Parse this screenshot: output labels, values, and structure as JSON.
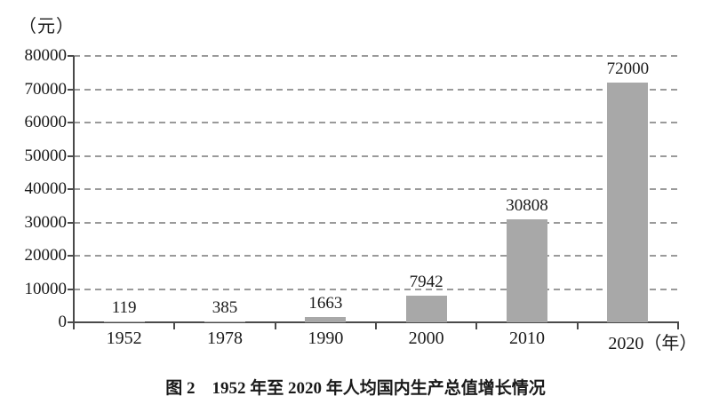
{
  "caption": "图 2　1952 年至 2020 年人均国内生产总值增长情况",
  "chart_data": {
    "type": "bar",
    "title": "图 2 1952 年至 2020 年人均国内生产总值增长情况",
    "categories": [
      "1952",
      "1978",
      "1990",
      "2000",
      "2010",
      "2020"
    ],
    "values": [
      119,
      385,
      1663,
      7942,
      30808,
      72000
    ],
    "data_labels": [
      "119",
      "385",
      "1663",
      "7942",
      "30808",
      "72000"
    ],
    "x_axis_suffix": "（年）",
    "ylabel": "（元）",
    "ylim": [
      0,
      80000
    ],
    "yticks": [
      0,
      10000,
      20000,
      30000,
      40000,
      50000,
      60000,
      70000,
      80000
    ],
    "grid": "horizontal-dashed",
    "legend": "none"
  },
  "colors": {
    "bar": "#a8a8a8",
    "grid": "#9a9a9a",
    "axis": "#4a4a4a",
    "text": "#1a1a1a",
    "background": "#ffffff"
  }
}
